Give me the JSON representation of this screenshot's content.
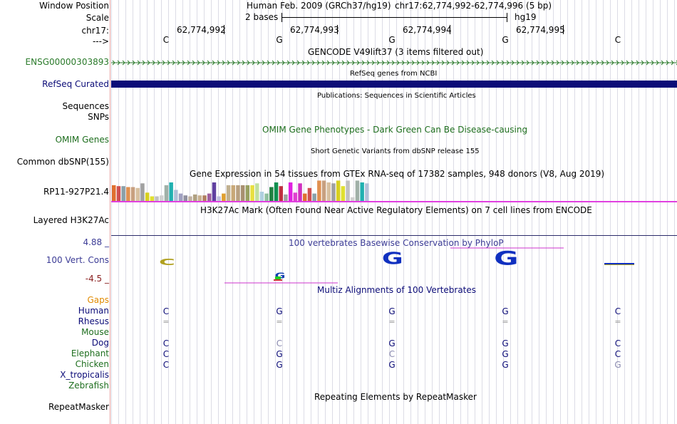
{
  "window_position": {
    "label": "Window Position",
    "assembly": "Human Feb. 2009 (GRCh37/hg19)",
    "coords": "chr17:62,774,992-62,774,996 (5 bp)"
  },
  "scale": {
    "label": "Scale",
    "bar_text": "2 bases",
    "db": "hg19"
  },
  "ruler": {
    "label": "chr17:",
    "positions": [
      "62,774,992",
      "62,774,993",
      "62,774,994",
      "62,774,995"
    ],
    "strand_label": "--->",
    "bases": [
      "C",
      "G",
      "G",
      "G",
      "C"
    ]
  },
  "tracks": {
    "gencode": {
      "title": "GENCODE V49lift37 (3 items filtered out)",
      "label": "ENSG00000303893",
      "color": "#2a7a2a"
    },
    "refseq": {
      "title": "RefSeq genes from NCBI",
      "label": "RefSeq Curated",
      "color": "#0c0c78"
    },
    "publications": {
      "title": "Publications: Sequences in Scientific Articles"
    },
    "sequences": {
      "label": "Sequences"
    },
    "snps": {
      "label": "SNPs"
    },
    "omim": {
      "title": "OMIM Gene Phenotypes - Dark Green Can Be Disease-causing",
      "label": "OMIM Genes",
      "color": "#1e6e1e"
    },
    "dbsnp": {
      "title": "Short Genetic Variants from dbSNP release 155",
      "label": "Common dbSNP(155)"
    },
    "gtex": {
      "title": "Gene Expression in 54 tissues from GTEx RNA-seq of 17382 samples, 948 donors (V8, Aug 2019)",
      "label": "RP11-927P21.4"
    },
    "h3k27ac": {
      "title": "H3K27Ac Mark (Often Found Near Active Regulatory Elements) on 7 cell lines from ENCODE",
      "label": "Layered H3K27Ac"
    },
    "cons": {
      "title": "100 vertebrates Basewise Conservation by PhyloP",
      "label": "100 Vert. Cons",
      "max": "4.88 _",
      "min": "-4.5 _",
      "color": "#3c3c96"
    },
    "multiz": {
      "title": "Multiz Alignments of 100 Vertebrates"
    },
    "rmsk": {
      "title": "Repeating Elements by RepeatMasker",
      "label": "RepeatMasker"
    }
  },
  "gtex_bar_values": [
    0.85,
    0.8,
    0.8,
    0.75,
    0.75,
    0.7,
    0.95,
    0.45,
    0.25,
    0.25,
    0.3,
    0.85,
    1.0,
    0.6,
    0.4,
    0.3,
    0.25,
    0.35,
    0.3,
    0.3,
    0.4,
    1.0,
    0.25,
    0.4,
    0.85,
    0.85,
    0.85,
    0.85,
    0.85,
    0.85,
    0.95,
    0.5,
    0.4,
    0.75,
    1.0,
    0.8,
    0.35,
    1.0,
    0.45,
    0.95,
    0.4,
    0.7,
    0.4,
    1.1,
    1.1,
    1.0,
    0.95,
    1.1,
    0.8,
    1.1,
    0.2,
    1.1,
    1.0,
    0.95
  ],
  "species": [
    {
      "name": "Gaps",
      "color": "#e08a00",
      "bases": [
        "",
        "",
        "",
        "",
        ""
      ]
    },
    {
      "name": "Human",
      "color": "#0c0c78",
      "bases": [
        "C",
        "G",
        "G",
        "G",
        "C"
      ]
    },
    {
      "name": "Rhesus",
      "color": "#0c0c78",
      "bases": [
        "=",
        "=",
        "=",
        "=",
        "="
      ]
    },
    {
      "name": "Mouse",
      "color": "#1e6e1e",
      "bases": [
        "",
        "",
        "",
        "",
        ""
      ]
    },
    {
      "name": "Dog",
      "color": "#0c0c78",
      "bases": [
        "C",
        "C",
        "G",
        "G",
        "C"
      ]
    },
    {
      "name": "Elephant",
      "color": "#1e6e1e",
      "bases": [
        "C",
        "G",
        "C",
        "G",
        "C"
      ]
    },
    {
      "name": "Chicken",
      "color": "#1e6e1e",
      "bases": [
        "C",
        "G",
        "G",
        "G",
        "G"
      ]
    },
    {
      "name": "X_tropicalis",
      "color": "#0c0c78",
      "bases": [
        "",
        "",
        "",
        "",
        ""
      ]
    },
    {
      "name": "Zebrafish",
      "color": "#1e6e1e",
      "bases": [
        "",
        "",
        "",
        "",
        ""
      ]
    }
  ],
  "species_faded": [
    [
      false,
      false,
      false,
      false,
      false
    ],
    [
      false,
      false,
      false,
      false,
      false
    ],
    [
      false,
      false,
      false,
      false,
      false
    ],
    [
      false,
      false,
      false,
      false,
      false
    ],
    [
      false,
      true,
      false,
      false,
      false
    ],
    [
      false,
      false,
      true,
      false,
      false
    ],
    [
      false,
      false,
      false,
      false,
      true
    ],
    [
      false,
      false,
      false,
      false,
      false
    ],
    [
      false,
      false,
      false,
      false,
      false
    ]
  ]
}
